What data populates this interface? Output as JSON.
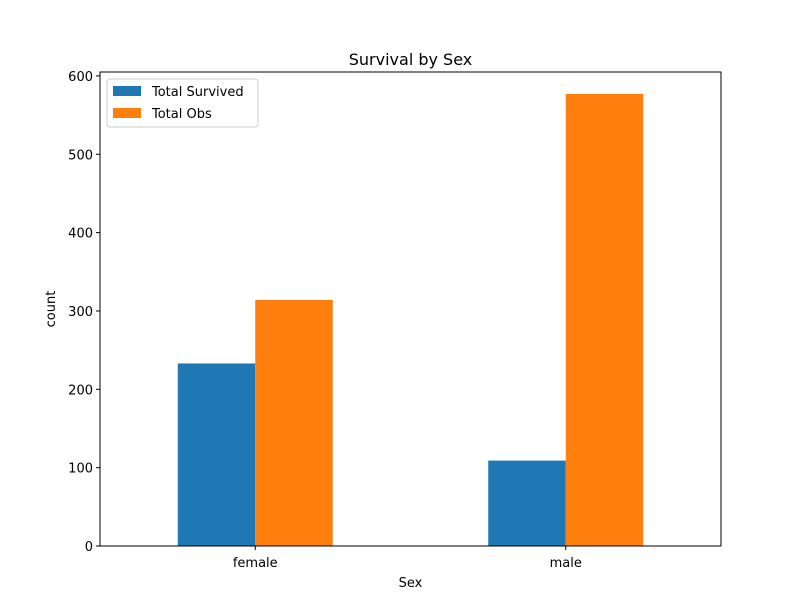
{
  "chart_data": {
    "type": "bar",
    "title": "Survival by Sex",
    "xlabel": "Sex",
    "ylabel": "count",
    "categories": [
      "female",
      "male"
    ],
    "series": [
      {
        "name": "Total Survived",
        "values": [
          233,
          109
        ],
        "color": "#1f77b4"
      },
      {
        "name": "Total Obs",
        "values": [
          314,
          577
        ],
        "color": "#ff7f0e"
      }
    ],
    "ylim": [
      0,
      605
    ],
    "yticks": [
      0,
      100,
      200,
      300,
      400,
      500,
      600
    ],
    "grid": false,
    "legend_position": "top-left"
  }
}
